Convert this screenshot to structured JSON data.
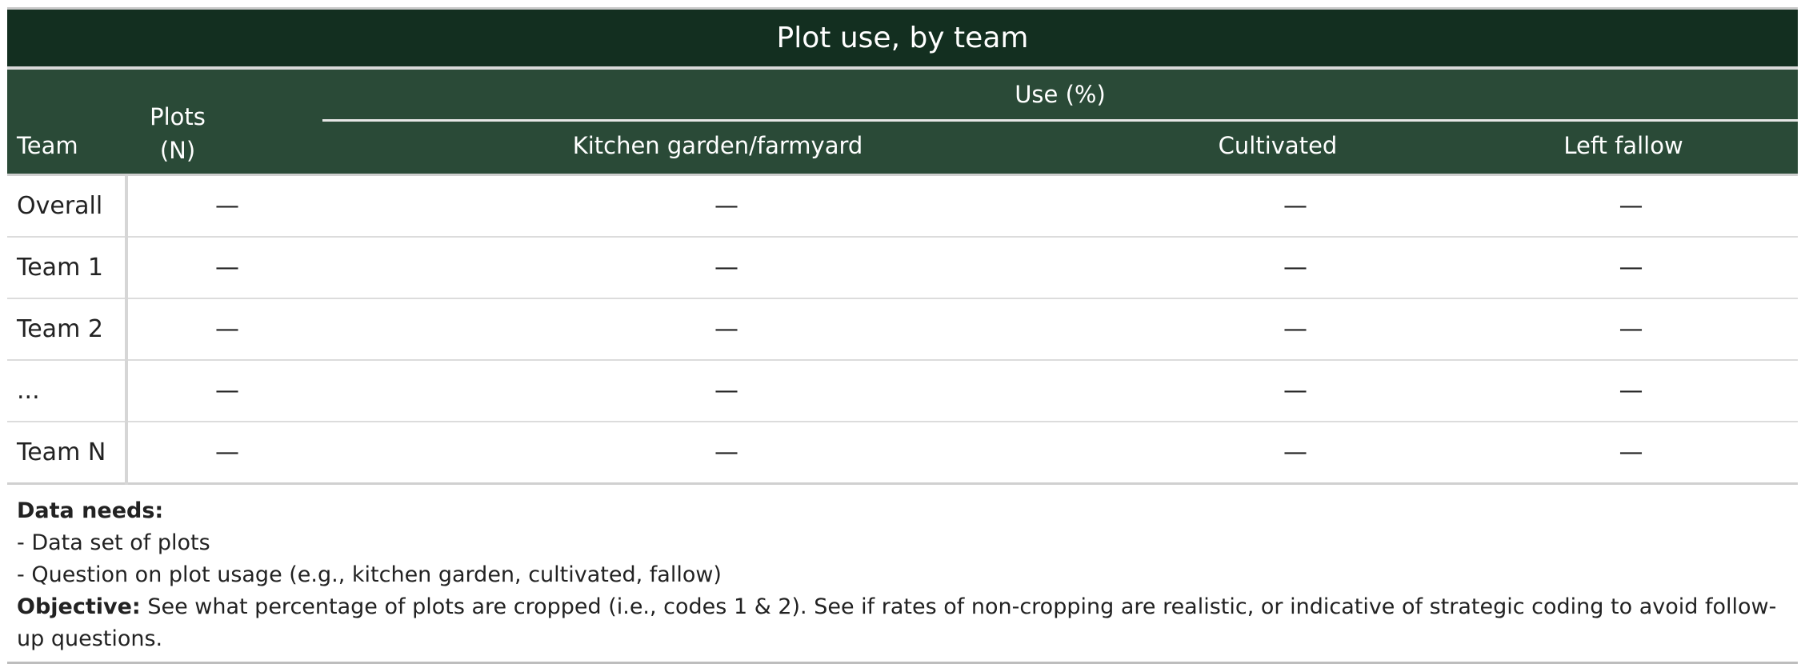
{
  "table": {
    "title": "Plot use, by team",
    "headers": {
      "team": "Team",
      "plots_line1": "Plots",
      "plots_line2": "(N)",
      "use_spanner": "Use (%)",
      "kitchen": "Kitchen garden/farmyard",
      "cultivated": "Cultivated",
      "fallow": "Left fallow"
    },
    "rows": [
      {
        "team": "Overall",
        "plots": "—",
        "kitchen": "—",
        "cultivated": "—",
        "fallow": "—"
      },
      {
        "team": "Team 1",
        "plots": "—",
        "kitchen": "—",
        "cultivated": "—",
        "fallow": "—"
      },
      {
        "team": "Team 2",
        "plots": "—",
        "kitchen": "—",
        "cultivated": "—",
        "fallow": "—"
      },
      {
        "team": "...",
        "plots": "—",
        "kitchen": "—",
        "cultivated": "—",
        "fallow": "—"
      },
      {
        "team": "Team N",
        "plots": "—",
        "kitchen": "—",
        "cultivated": "—",
        "fallow": "—"
      }
    ],
    "footnote": {
      "data_needs_label": "Data needs:",
      "need_1": "- Data set of plots",
      "need_2": "- Question on plot usage (e.g., kitchen garden, cultivated, fallow)",
      "objective_label": "Objective:",
      "objective_text": "See what percentage of plots are cropped (i.e., codes 1 & 2). See if rates of non-cropping are realistic, or indicative of strategic coding to avoid follow-up questions."
    }
  }
}
